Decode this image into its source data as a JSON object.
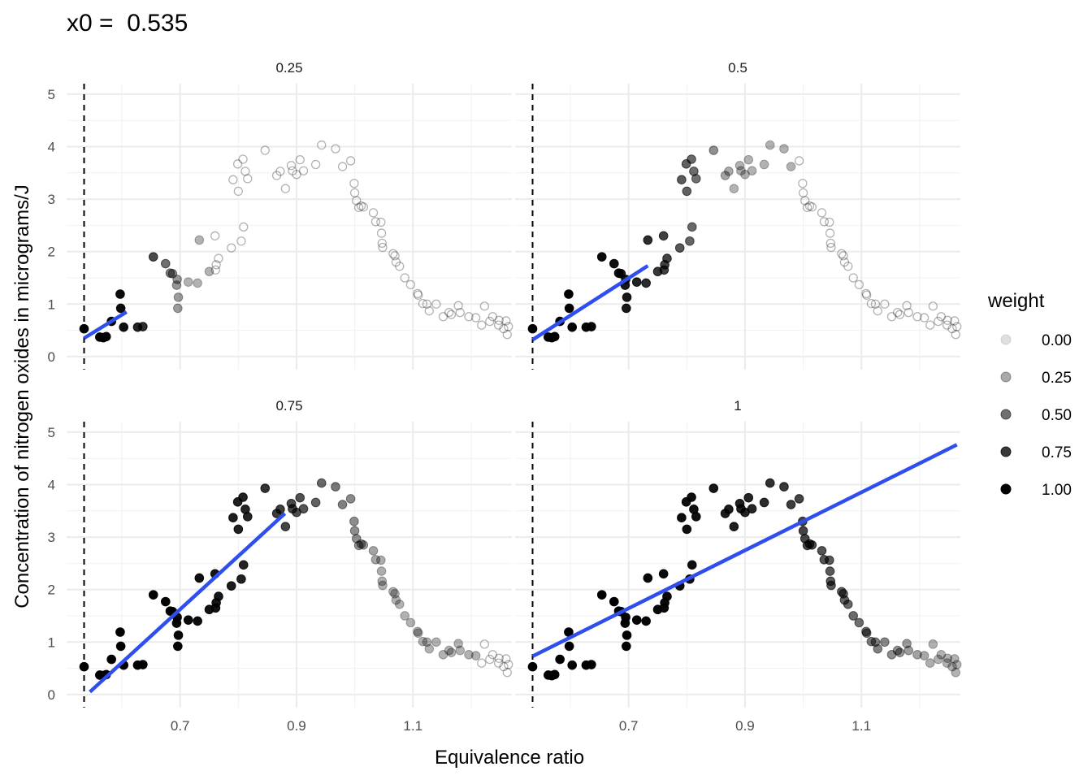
{
  "chart_data": {
    "type": "scatter",
    "title": "x0 =  0.535",
    "xlabel": "Equivalence ratio",
    "ylabel": "Concentration of nitrogen oxides in micrograms/J",
    "x0": 0.535,
    "xlim": [
      0.505,
      1.27
    ],
    "ylim": [
      -0.25,
      5.2
    ],
    "x_ticks": [
      "0.7",
      "0.9",
      "1.1"
    ],
    "y_ticks": [
      "0",
      "1",
      "2",
      "3",
      "4",
      "5"
    ],
    "grid": true,
    "legend": {
      "title": "weight",
      "position": "right",
      "entries": [
        "0.00",
        "0.25",
        "0.50",
        "0.75",
        "1.00"
      ],
      "values": [
        0,
        0.25,
        0.5,
        0.75,
        1
      ]
    },
    "colors": {
      "points": "#000000",
      "fit_line": "#2E4FEE",
      "vline": "#000000",
      "grid": "#EBEBEB"
    },
    "points": [
      [
        0.535,
        0.53
      ],
      [
        0.562,
        0.37
      ],
      [
        0.568,
        0.36
      ],
      [
        0.573,
        0.38
      ],
      [
        0.582,
        0.67
      ],
      [
        0.597,
        1.19
      ],
      [
        0.598,
        0.92
      ],
      [
        0.603,
        0.56
      ],
      [
        0.627,
        0.56
      ],
      [
        0.636,
        0.57
      ],
      [
        0.654,
        1.9
      ],
      [
        0.675,
        1.77
      ],
      [
        0.683,
        1.59
      ],
      [
        0.687,
        1.58
      ],
      [
        0.695,
        1.47
      ],
      [
        0.694,
        1.36
      ],
      [
        0.697,
        1.13
      ],
      [
        0.696,
        0.92
      ],
      [
        0.714,
        1.42
      ],
      [
        0.73,
        1.4
      ],
      [
        0.733,
        2.22
      ],
      [
        0.75,
        1.62
      ],
      [
        0.76,
        2.3
      ],
      [
        0.761,
        1.65
      ],
      [
        0.762,
        1.75
      ],
      [
        0.766,
        1.87
      ],
      [
        0.788,
        2.07
      ],
      [
        0.791,
        3.37
      ],
      [
        0.799,
        3.67
      ],
      [
        0.8,
        3.15
      ],
      [
        0.805,
        2.2
      ],
      [
        0.808,
        3.76
      ],
      [
        0.809,
        2.47
      ],
      [
        0.812,
        3.53
      ],
      [
        0.816,
        3.39
      ],
      [
        0.846,
        3.93
      ],
      [
        0.866,
        3.45
      ],
      [
        0.872,
        3.53
      ],
      [
        0.881,
        3.2
      ],
      [
        0.891,
        3.64
      ],
      [
        0.893,
        3.54
      ],
      [
        0.9,
        3.47
      ],
      [
        0.906,
        3.75
      ],
      [
        0.912,
        3.54
      ],
      [
        0.933,
        3.66
      ],
      [
        0.943,
        4.03
      ],
      [
        0.967,
        3.96
      ],
      [
        0.979,
        3.62
      ],
      [
        0.993,
        3.73
      ],
      [
        0.999,
        3.3
      ],
      [
        1.0,
        3.12
      ],
      [
        1.003,
        2.97
      ],
      [
        1.007,
        2.84
      ],
      [
        1.011,
        2.87
      ],
      [
        1.015,
        2.85
      ],
      [
        1.032,
        2.74
      ],
      [
        1.036,
        2.57
      ],
      [
        1.045,
        2.56
      ],
      [
        1.046,
        2.35
      ],
      [
        1.047,
        2.16
      ],
      [
        1.048,
        2.08
      ],
      [
        1.066,
        1.96
      ],
      [
        1.069,
        1.92
      ],
      [
        1.071,
        1.8
      ],
      [
        1.077,
        1.72
      ],
      [
        1.086,
        1.5
      ],
      [
        1.096,
        1.37
      ],
      [
        1.108,
        1.2
      ],
      [
        1.109,
        1.17
      ],
      [
        1.117,
        1.01
      ],
      [
        1.124,
        1.0
      ],
      [
        1.128,
        0.87
      ],
      [
        1.14,
        1.0
      ],
      [
        1.152,
        0.76
      ],
      [
        1.162,
        0.84
      ],
      [
        1.166,
        0.8
      ],
      [
        1.178,
        0.97
      ],
      [
        1.181,
        0.84
      ],
      [
        1.196,
        0.76
      ],
      [
        1.208,
        0.74
      ],
      [
        1.218,
        0.6
      ],
      [
        1.223,
        0.96
      ],
      [
        1.232,
        0.67
      ],
      [
        1.237,
        0.76
      ],
      [
        1.247,
        0.6
      ],
      [
        1.248,
        0.69
      ],
      [
        1.256,
        0.53
      ],
      [
        1.26,
        0.68
      ],
      [
        1.262,
        0.42
      ],
      [
        1.264,
        0.57
      ]
    ],
    "panels": [
      {
        "label": "0.25",
        "fit": {
          "x": [
            0.535,
            0.608
          ],
          "y": [
            0.35,
            0.85
          ]
        }
      },
      {
        "label": "0.5",
        "fit": {
          "x": [
            0.535,
            0.733
          ],
          "y": [
            0.32,
            1.73
          ]
        }
      },
      {
        "label": "0.75",
        "fit": {
          "x": [
            0.545,
            0.88
          ],
          "y": [
            0.05,
            3.45
          ]
        }
      },
      {
        "label": "1",
        "fit": {
          "x": [
            0.535,
            1.264
          ],
          "y": [
            0.73,
            4.76
          ]
        }
      }
    ]
  }
}
